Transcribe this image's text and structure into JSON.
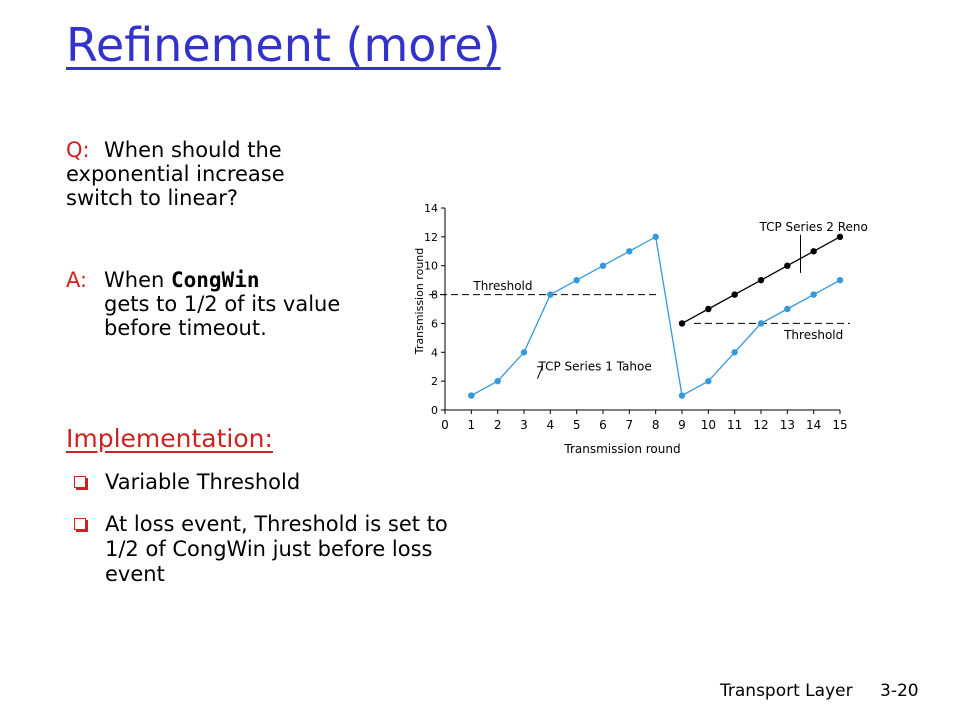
{
  "slide": {
    "title": "Refinement (more)",
    "question_label": "Q:",
    "question_text": "When should the exponential increase switch to linear?",
    "answer_label": "A:",
    "answer_pre": "When ",
    "answer_code": "CongWin",
    "answer_post": "gets to 1/2 of its value before timeout.",
    "implementation_heading": "Implementation:",
    "bullets": [
      "Variable Threshold",
      "At loss event, Threshold is set to 1/2 of CongWin just before loss event"
    ],
    "footer_section": "Transport Layer",
    "footer_page": "3-20"
  },
  "chart_data": {
    "type": "line",
    "xlabel": "Transmission round",
    "ylabel": "Transmission round",
    "xlim": [
      0,
      15
    ],
    "ylim": [
      0,
      14
    ],
    "x_ticks": [
      "0",
      "1",
      "2",
      "3",
      "4",
      "5",
      "6",
      "7",
      "8",
      "9",
      "10",
      "11",
      "12",
      "13",
      "14",
      "15"
    ],
    "y_ticks": [
      "0",
      "2",
      "4",
      "6",
      "8",
      "10",
      "12",
      "14"
    ],
    "series": [
      {
        "name": "TCP Series 1 Tahoe",
        "color": "#3399dd",
        "x": [
          1,
          2,
          3,
          4,
          5,
          6,
          7,
          8,
          9,
          10,
          11,
          12,
          13,
          14,
          15
        ],
        "y": [
          1,
          2,
          4,
          8,
          9,
          10,
          11,
          12,
          1,
          2,
          4,
          6,
          7,
          8,
          9
        ]
      },
      {
        "name": "TCP Series 2 Reno",
        "color": "#000000",
        "x": [
          9,
          10,
          11,
          12,
          13,
          14,
          15
        ],
        "y": [
          6,
          7,
          8,
          9,
          10,
          11,
          12
        ]
      }
    ],
    "thresholds": [
      {
        "label": "Threshold",
        "y": 8,
        "x_range": [
          0,
          8
        ]
      },
      {
        "label": "Threshold",
        "y": 6,
        "x_range": [
          9,
          15
        ]
      }
    ],
    "annotations": [
      {
        "text": "TCP Series 2 Reno",
        "x": 14,
        "y": 12.7,
        "point_x": 13.5,
        "point_y": 9.5
      },
      {
        "text": "TCP Series 1 Tahoe",
        "x": 5.7,
        "y": 3,
        "point_x": 3.7,
        "point_y": 3
      },
      {
        "text": "Threshold",
        "x": 2.2,
        "y": 8.6
      },
      {
        "text": "Threshold",
        "x": 14,
        "y": 5.2
      }
    ]
  }
}
